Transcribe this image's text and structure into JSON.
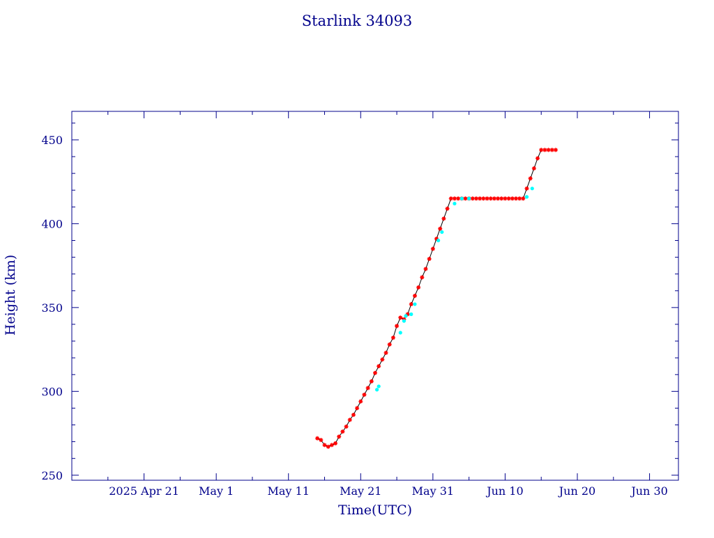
{
  "chart_data": {
    "type": "scatter",
    "title": "Starlink 34093",
    "xlabel": "Time(UTC)",
    "ylabel": "Height (km)",
    "x_type": "date",
    "xlim": [
      "2025-04-11",
      "2025-07-04"
    ],
    "ylim": [
      247,
      467
    ],
    "x_major_ticks": [
      {
        "date": "2025-04-21",
        "label": "2025 Apr 21"
      },
      {
        "date": "2025-05-01",
        "label": "May  1"
      },
      {
        "date": "2025-05-11",
        "label": "May 11"
      },
      {
        "date": "2025-05-21",
        "label": "May 21"
      },
      {
        "date": "2025-05-31",
        "label": "May 31"
      },
      {
        "date": "2025-06-10",
        "label": "Jun 10"
      },
      {
        "date": "2025-06-20",
        "label": "Jun 20"
      },
      {
        "date": "2025-06-30",
        "label": "Jun 30"
      }
    ],
    "y_major_ticks": [
      {
        "value": 250,
        "label": "250"
      },
      {
        "value": 300,
        "label": "300"
      },
      {
        "value": 350,
        "label": "350"
      },
      {
        "value": 400,
        "label": "400"
      },
      {
        "value": 450,
        "label": "450"
      }
    ],
    "grid": false,
    "colors": {
      "axes": "#00008b",
      "text": "#00008b",
      "line": "#000000",
      "marker_primary": "#ff0000",
      "marker_secondary": "#00ffff"
    },
    "series": [
      {
        "marker": "star",
        "color": "#ff0000",
        "connected": true,
        "x": [
          "2025-05-15",
          "2025-05-15T12:00",
          "2025-05-16",
          "2025-05-16T12:00",
          "2025-05-17",
          "2025-05-17T12:00",
          "2025-05-18",
          "2025-05-18T12:00",
          "2025-05-19",
          "2025-05-19T12:00",
          "2025-05-20",
          "2025-05-20T12:00",
          "2025-05-21",
          "2025-05-21T12:00",
          "2025-05-22",
          "2025-05-22T12:00",
          "2025-05-23",
          "2025-05-23T12:00",
          "2025-05-24",
          "2025-05-24T12:00",
          "2025-05-25",
          "2025-05-25T12:00",
          "2025-05-26",
          "2025-05-26T12:00",
          "2025-05-27",
          "2025-05-27T12:00",
          "2025-05-28",
          "2025-05-28T12:00",
          "2025-05-29",
          "2025-05-29T12:00",
          "2025-05-30",
          "2025-05-30T12:00",
          "2025-05-31",
          "2025-05-31T12:00",
          "2025-06-01",
          "2025-06-01T12:00",
          "2025-06-02",
          "2025-06-02T12:00",
          "2025-06-03",
          "2025-06-03T12:00",
          "2025-06-04",
          "2025-06-04T12:00",
          "2025-06-05",
          "2025-06-05T12:00",
          "2025-06-06",
          "2025-06-06T12:00",
          "2025-06-07",
          "2025-06-07T12:00",
          "2025-06-08",
          "2025-06-08T12:00",
          "2025-06-09",
          "2025-06-09T12:00",
          "2025-06-10",
          "2025-06-10T12:00",
          "2025-06-11",
          "2025-06-11T12:00",
          "2025-06-12",
          "2025-06-12T12:00",
          "2025-06-13",
          "2025-06-13T12:00",
          "2025-06-14",
          "2025-06-14T12:00",
          "2025-06-15",
          "2025-06-15T12:00",
          "2025-06-16",
          "2025-06-16T12:00",
          "2025-06-17"
        ],
        "y": [
          272,
          271,
          268,
          267,
          268,
          269,
          273,
          276,
          279,
          283,
          286,
          290,
          294,
          298,
          302,
          306,
          311,
          315,
          319,
          323,
          328,
          332,
          339,
          344,
          343,
          346,
          352,
          357,
          362,
          368,
          373,
          379,
          385,
          391,
          397,
          403,
          409,
          415,
          415,
          415,
          415,
          415,
          415,
          415,
          415,
          415,
          415,
          415,
          415,
          415,
          415,
          415,
          415,
          415,
          415,
          415,
          415,
          415,
          421,
          427,
          433,
          439,
          444,
          444,
          444,
          444,
          444
        ]
      },
      {
        "marker": "dot",
        "color": "#00ffff",
        "connected": false,
        "x": [
          "2025-05-23T06:00",
          "2025-05-23T12:00",
          "2025-05-26T12:00",
          "2025-05-27",
          "2025-05-27T06:00",
          "2025-05-28",
          "2025-05-28T12:00",
          "2025-05-31T18:00",
          "2025-06-01T06:00",
          "2025-06-03",
          "2025-06-04",
          "2025-06-05",
          "2025-06-13",
          "2025-06-13T18:00"
        ],
        "y": [
          301,
          303,
          335,
          342,
          345,
          346,
          352,
          390,
          395,
          412,
          415,
          415,
          416,
          421
        ]
      }
    ]
  }
}
